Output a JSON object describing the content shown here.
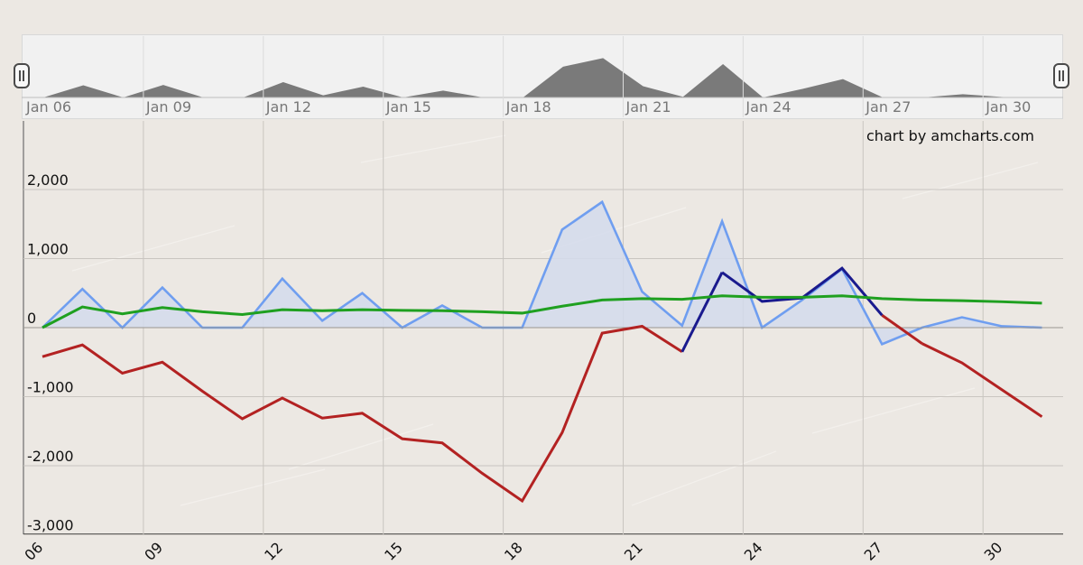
{
  "credit": "chart by amcharts.com",
  "colors": {
    "background": "#ece8e3",
    "grid": "#c9c5c0",
    "area_line": "#6f9ef0",
    "area_fill": "#d4dbec",
    "dark_line": "#1a1a8e",
    "red_line": "#b32222",
    "green_line": "#1fa020",
    "scrollbar_fill": "#7a7a7a"
  },
  "chart_data": {
    "type": "line",
    "title": "",
    "xlabel": "",
    "ylabel": "",
    "x_tick_labels": [
      "06",
      "09",
      "12",
      "15",
      "18",
      "21",
      "24",
      "27",
      "30"
    ],
    "y_tick_labels": [
      "2,000",
      "1,000",
      "0",
      "-1,000",
      "-2,000",
      "-3,000"
    ],
    "y_ticks": [
      2000,
      1000,
      0,
      -1000,
      -2000,
      -3000
    ],
    "ylim": [
      -3000,
      3000
    ],
    "x": [
      "Jan 06",
      "Jan 07",
      "Jan 08",
      "Jan 09",
      "Jan 10",
      "Jan 11",
      "Jan 12",
      "Jan 13",
      "Jan 14",
      "Jan 15",
      "Jan 16",
      "Jan 17",
      "Jan 18",
      "Jan 19",
      "Jan 20",
      "Jan 21",
      "Jan 22",
      "Jan 23",
      "Jan 24",
      "Jan 25",
      "Jan 26",
      "Jan 27",
      "Jan 28",
      "Jan 29",
      "Jan 30",
      "Jan 31"
    ],
    "grid": true,
    "series": [
      {
        "type": "area",
        "values": [
          0,
          560,
          0,
          580,
          0,
          0,
          710,
          100,
          500,
          0,
          320,
          0,
          0,
          1420,
          1820,
          520,
          30,
          1540,
          0,
          400,
          850,
          -240,
          0,
          150,
          20,
          0
        ]
      },
      {
        "type": "line",
        "values": [
          -420,
          -250,
          -660,
          -500,
          -920,
          -1320,
          -1020,
          -1310,
          -1240,
          -1610,
          -1670,
          -2110,
          -2510,
          -1520,
          -80,
          20,
          -350,
          null,
          null,
          null,
          null,
          null,
          -230,
          -510,
          -900,
          -1290
        ]
      },
      {
        "type": "line",
        "values": [
          null,
          null,
          null,
          null,
          null,
          null,
          null,
          null,
          null,
          null,
          null,
          null,
          null,
          null,
          null,
          null,
          null,
          800,
          380,
          430,
          860,
          180,
          null,
          null,
          null,
          null
        ]
      },
      {
        "type": "line",
        "values": [
          0,
          300,
          200,
          290,
          230,
          190,
          260,
          245,
          260,
          250,
          245,
          230,
          210,
          310,
          400,
          420,
          410,
          460,
          440,
          440,
          460,
          420,
          400,
          390,
          375,
          355
        ]
      }
    ],
    "scrollbar": {
      "tick_labels": [
        "Jan 06",
        "Jan 09",
        "Jan 12",
        "Jan 15",
        "Jan 18",
        "Jan 21",
        "Jan 24",
        "Jan 27",
        "Jan 30"
      ]
    }
  }
}
